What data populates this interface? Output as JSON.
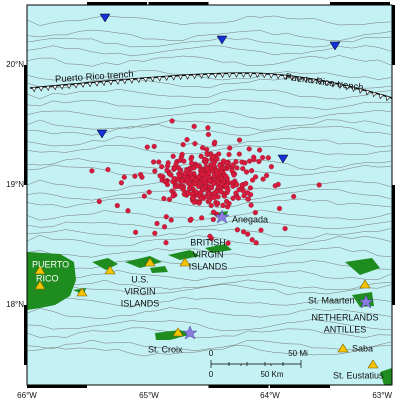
{
  "axes": {
    "x_labels": [
      "66°W",
      "65°W",
      "64°W",
      "63°W"
    ],
    "y_labels": [
      "20°N",
      "19°N",
      "18°N"
    ]
  },
  "labels": {
    "trench_west": "Puerto Rico trench",
    "trench_east": "Puerto Rico trench",
    "anegada": "Anegada",
    "bvi": [
      "BRITISH",
      "VIRGIN",
      "ISLANDS"
    ],
    "puerto_rico": [
      "PUERTO",
      "RICO"
    ],
    "usvi": [
      "U.S.",
      "VIRGIN",
      "ISLANDS"
    ],
    "st_croix": "St. Croix",
    "st_maarten": "St. Maarten",
    "netherlands_antilles": [
      "NETHERLANDS",
      "ANTILLES"
    ],
    "saba": "Saba",
    "st_eustatius": "St. Eustatius"
  },
  "scale_bar": {
    "miles": [
      "0",
      "50 Mi"
    ],
    "km": [
      "0",
      "50 Km"
    ]
  }
}
